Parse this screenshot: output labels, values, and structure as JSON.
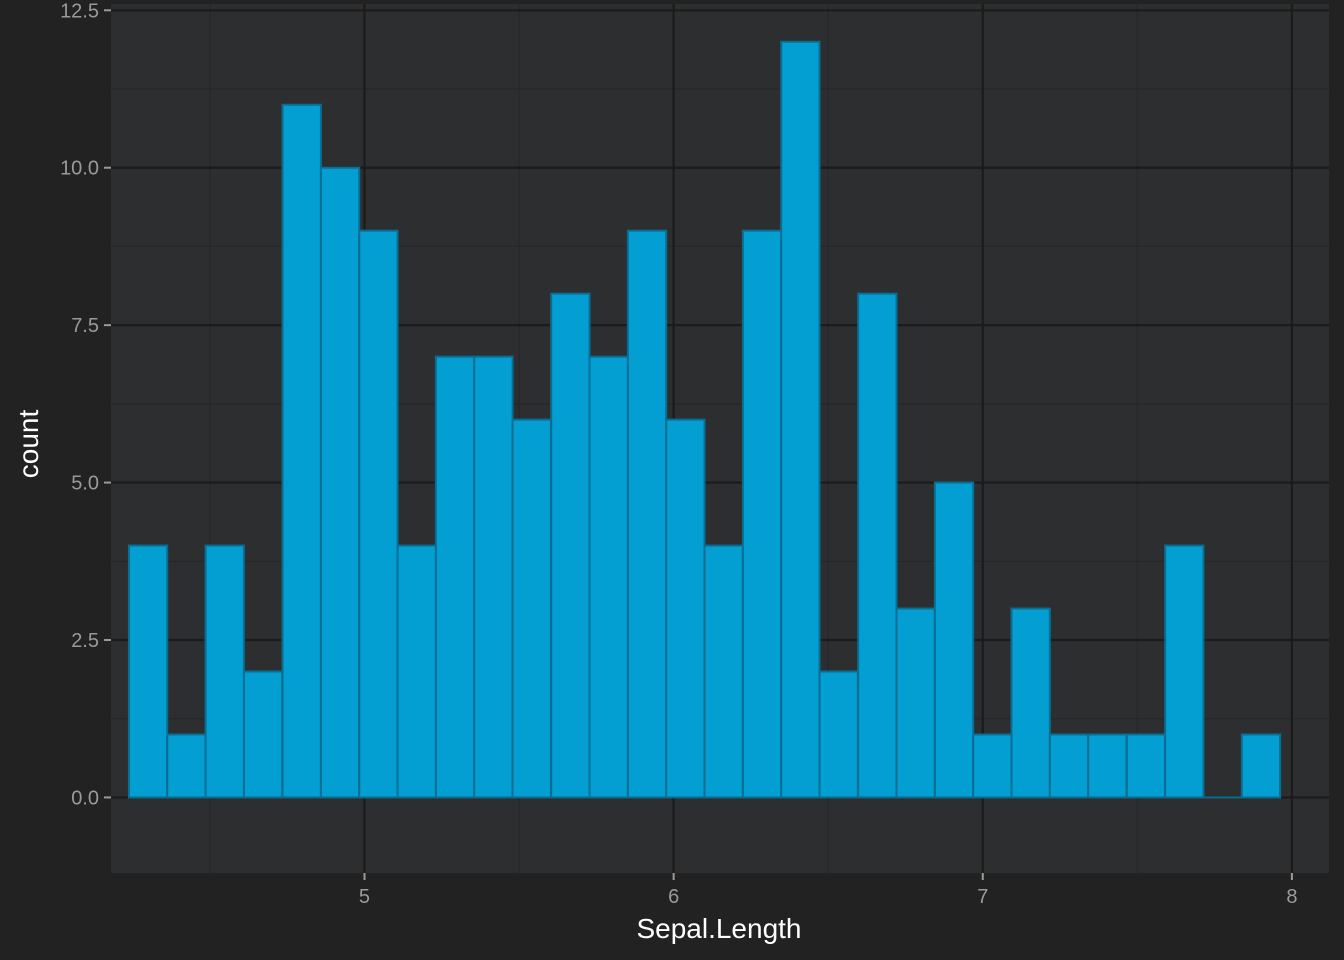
{
  "chart_data": {
    "type": "bar",
    "xlabel": "Sepal.Length",
    "ylabel": "count",
    "grid": true,
    "xlim": [
      4.18,
      8.12
    ],
    "ylim": [
      -1.2,
      12.6
    ],
    "x_ticks": [
      5,
      6,
      7,
      8
    ],
    "x_tick_labels": [
      "5",
      "6",
      "7",
      "8"
    ],
    "y_ticks": [
      0,
      2.5,
      5,
      7.5,
      10,
      12.5
    ],
    "y_tick_labels": [
      "0.0",
      "2.5",
      "5.0",
      "7.5",
      "10.0",
      "12.5"
    ],
    "bin_width": 0.124,
    "bins": [
      {
        "center": 4.3,
        "count": 4
      },
      {
        "center": 4.424,
        "count": 1
      },
      {
        "center": 4.548,
        "count": 4
      },
      {
        "center": 4.672,
        "count": 2
      },
      {
        "center": 4.797,
        "count": 11
      },
      {
        "center": 4.921,
        "count": 10
      },
      {
        "center": 5.045,
        "count": 9
      },
      {
        "center": 5.169,
        "count": 4
      },
      {
        "center": 5.293,
        "count": 7
      },
      {
        "center": 5.417,
        "count": 7
      },
      {
        "center": 5.541,
        "count": 6
      },
      {
        "center": 5.666,
        "count": 8
      },
      {
        "center": 5.79,
        "count": 7
      },
      {
        "center": 5.914,
        "count": 9
      },
      {
        "center": 6.038,
        "count": 6
      },
      {
        "center": 6.162,
        "count": 4
      },
      {
        "center": 6.286,
        "count": 9
      },
      {
        "center": 6.41,
        "count": 12
      },
      {
        "center": 6.534,
        "count": 2
      },
      {
        "center": 6.659,
        "count": 8
      },
      {
        "center": 6.783,
        "count": 3
      },
      {
        "center": 6.907,
        "count": 5
      },
      {
        "center": 7.031,
        "count": 1
      },
      {
        "center": 7.155,
        "count": 3
      },
      {
        "center": 7.279,
        "count": 1
      },
      {
        "center": 7.403,
        "count": 1
      },
      {
        "center": 7.528,
        "count": 1
      },
      {
        "center": 7.652,
        "count": 4
      },
      {
        "center": 7.776,
        "count": 0
      },
      {
        "center": 7.9,
        "count": 1
      }
    ],
    "colors": {
      "background": "#222222",
      "panel": "#2c2e2f",
      "grid_major": "#1b1b1b",
      "grid_minor": "#262728",
      "bar_fill": "#039fd2",
      "bar_outline": "#0a6d92",
      "tick_text": "#9a9a9a",
      "title_text": "#ffffff"
    }
  }
}
